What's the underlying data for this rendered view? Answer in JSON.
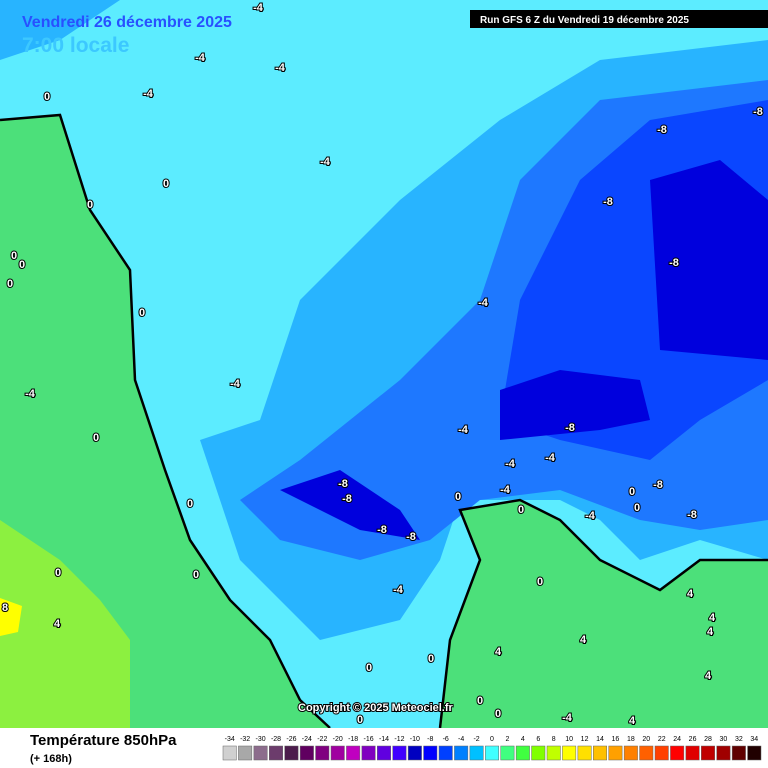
{
  "header": {
    "date": "Vendredi 26 décembre 2025",
    "time": "7:00 locale",
    "run": "Run GFS 6 Z du Vendredi 19 décembre 2025"
  },
  "copyright": "Copyright © 2025 Meteociel.fr",
  "footer": {
    "title": "Température 850hPa",
    "lead": "(+ 168h)"
  },
  "contour_labels": [
    "-4",
    "-4",
    "-4",
    "-4",
    "0",
    "-4",
    "0",
    "0",
    "0",
    "0",
    "0",
    "0",
    "-4",
    "-4",
    "-4",
    "0",
    "-4",
    "-8",
    "-8",
    "-8",
    "-8",
    "-8",
    "-4",
    "-4",
    "-8",
    "-8",
    "-8",
    "-8",
    "0",
    "-4",
    "0",
    "-4",
    "-8",
    "-8",
    "0",
    "0",
    "0",
    "0",
    "0",
    "-4",
    "4",
    "8",
    "0",
    "4",
    "4",
    "4",
    "4",
    "0",
    "4",
    "0",
    "4",
    "0",
    "0",
    "-4",
    "4",
    "0"
  ],
  "legend": {
    "ticks": [
      -34,
      -32,
      -30,
      -28,
      -26,
      -24,
      -22,
      -20,
      -18,
      -16,
      -14,
      -12,
      -10,
      -8,
      -6,
      -4,
      -2,
      0,
      2,
      4,
      6,
      8,
      10,
      12,
      14,
      16,
      18,
      20,
      22,
      24,
      26,
      28,
      30,
      32,
      34
    ],
    "colors": [
      "#d0d0d0",
      "#a8a8a8",
      "#8c6c8c",
      "#6c3c6c",
      "#4c1c4c",
      "#600060",
      "#800080",
      "#a000a0",
      "#c000c0",
      "#8000c0",
      "#6000e0",
      "#4000ff",
      "#0000c0",
      "#0000ff",
      "#0040ff",
      "#0080ff",
      "#00c0ff",
      "#40ffff",
      "#40ff80",
      "#40ff40",
      "#80ff00",
      "#c0ff00",
      "#ffff00",
      "#ffe000",
      "#ffc000",
      "#ffa000",
      "#ff8000",
      "#ff6000",
      "#ff4000",
      "#ff0000",
      "#e00000",
      "#c00000",
      "#a00000",
      "#600000",
      "#200000"
    ]
  }
}
